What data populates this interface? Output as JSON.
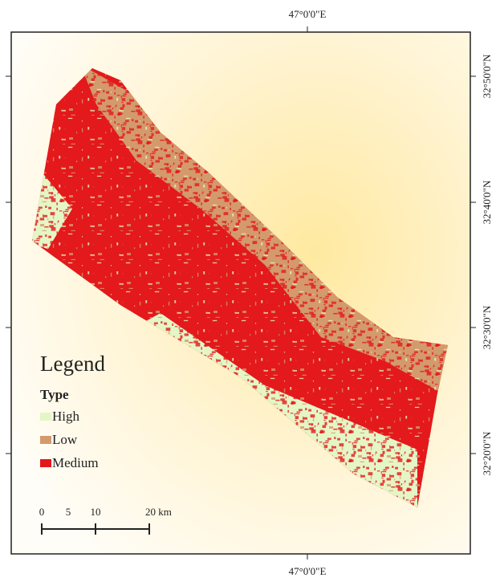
{
  "map": {
    "top_label": "47°0'0\"E",
    "bottom_label": "47°0'0\"E",
    "right_labels": [
      "32°50'0\"N",
      "32°40'0\"N",
      "32°30'0\"N",
      "32°20'0\"N"
    ],
    "legend": {
      "title": "Legend",
      "heading": "Type",
      "items": [
        {
          "label": "High",
          "color": "#e4f6c6"
        },
        {
          "label": "Low",
          "color": "#d39a6c"
        },
        {
          "label": "Medium",
          "color": "#e3191c"
        }
      ]
    },
    "scale_bar": {
      "labels": [
        "0",
        "5",
        "10",
        "20 km"
      ]
    }
  }
}
